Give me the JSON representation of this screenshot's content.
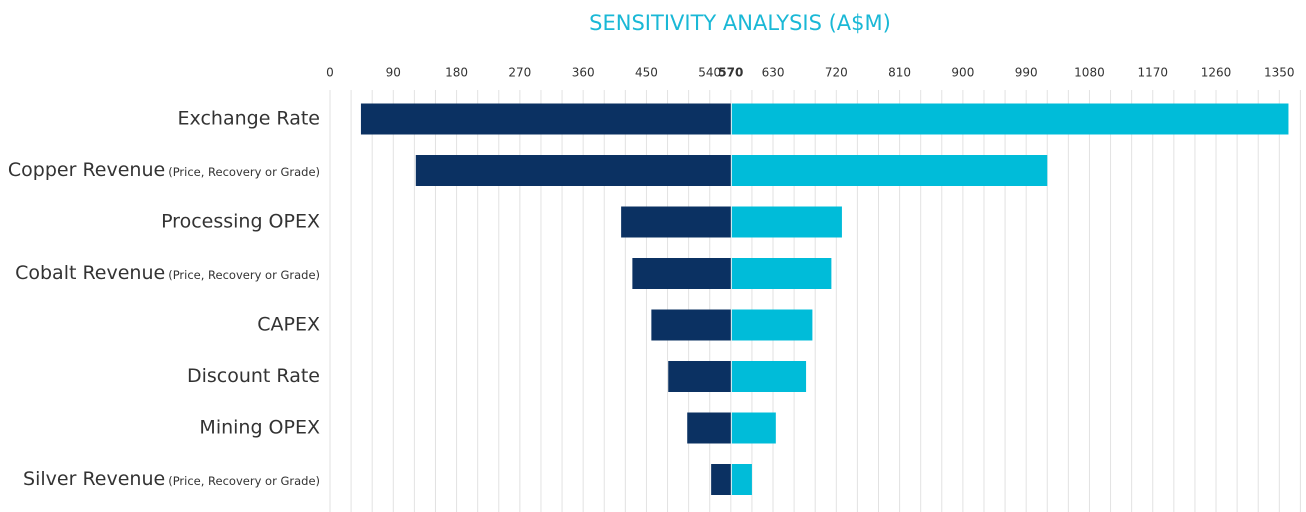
{
  "chart_data": {
    "type": "tornado",
    "title": "SENSITIVITY ANALYSIS (A$M)",
    "categories": [
      "Exchange Rate",
      "Copper Revenue",
      "Processing OPEX",
      "Cobalt Revenue",
      "CAPEX",
      "Discount Rate",
      "Mining OPEX",
      "Silver Revenue"
    ],
    "category_notes": [
      null,
      "(Price, Recovery or Grade)",
      null,
      "(Price, Recovery or Grade)",
      null,
      null,
      null,
      "(Price, Recovery or Grade)"
    ],
    "base": 570,
    "low_values": [
      44,
      122,
      414,
      430,
      457,
      481,
      508,
      542
    ],
    "high_values": [
      1363,
      1020,
      728,
      713,
      686,
      677,
      634,
      600
    ],
    "low_color": "#0b3162",
    "high_color": "#00bcd9",
    "xlim": [
      0,
      1380
    ],
    "xticks": [
      0,
      90,
      180,
      270,
      360,
      450,
      540,
      570,
      630,
      720,
      810,
      900,
      990,
      1080,
      1170,
      1260,
      1350
    ],
    "xgrid": [
      0,
      30,
      60,
      90,
      120,
      150,
      180,
      210,
      240,
      270,
      300,
      330,
      360,
      390,
      420,
      450,
      480,
      510,
      540,
      570,
      600,
      630,
      660,
      690,
      720,
      750,
      780,
      810,
      840,
      870,
      900,
      930,
      960,
      990,
      1020,
      1050,
      1080,
      1110,
      1140,
      1170,
      1200,
      1230,
      1260,
      1290,
      1320,
      1350,
      1380
    ],
    "grid": true
  }
}
